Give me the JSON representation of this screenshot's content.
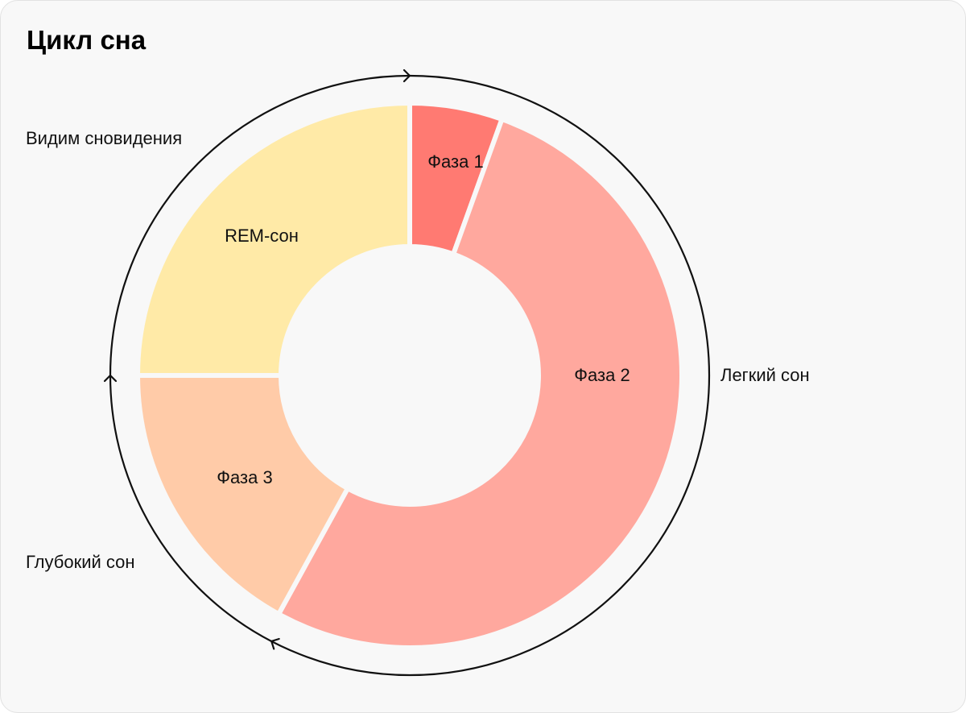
{
  "title": "Цикл сна",
  "chart_data": {
    "type": "pie",
    "variant": "donut",
    "title": "Цикл сна",
    "slices": [
      {
        "label": "Фаза 1",
        "value": 5.5,
        "color": "#ff7a72"
      },
      {
        "label": "Фаза 2",
        "value": 52.5,
        "color": "#ffa89e"
      },
      {
        "label": "Фаза 3",
        "value": 17,
        "color": "#ffcba8"
      },
      {
        "label": "REM-сон",
        "value": 25,
        "color": "#ffeaa7"
      }
    ],
    "annotations": [
      {
        "label": "Легкий сон"
      },
      {
        "label": "Глубокий сон"
      },
      {
        "label": "Видим сновидения"
      }
    ],
    "cycle_arrow_color": "#111111"
  }
}
